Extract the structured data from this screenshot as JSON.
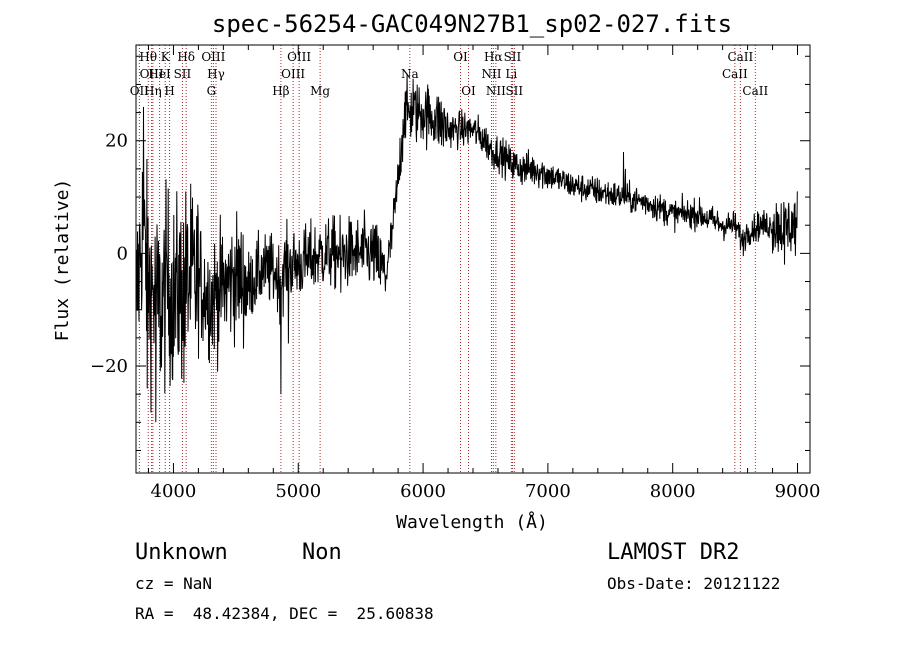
{
  "chart_data": {
    "type": "line",
    "title": "spec-56254-GAC049N27B1_sp02-027.fits",
    "xlabel": "Wavelength (Å)",
    "ylabel": "Flux (relative)",
    "xlim": [
      3700,
      9100
    ],
    "ylim": [
      -39,
      37
    ],
    "x_ticks": [
      4000,
      5000,
      6000,
      7000,
      8000,
      9000
    ],
    "x_tick_labels": [
      "4000",
      "5000",
      "6000",
      "7000",
      "8000",
      "9000"
    ],
    "y_ticks": [
      -20,
      0,
      20
    ],
    "y_tick_labels": [
      "−20",
      "0",
      "20"
    ],
    "grid": false,
    "spectrum_anchors": {
      "x": [
        3700,
        3750,
        3800,
        3850,
        3900,
        3950,
        4000,
        4100,
        4200,
        4300,
        4400,
        4500,
        4600,
        4700,
        4800,
        4860,
        4900,
        5000,
        5100,
        5200,
        5300,
        5400,
        5500,
        5600,
        5700,
        5750,
        5800,
        5850,
        5900,
        6000,
        6100,
        6200,
        6300,
        6400,
        6500,
        6560,
        6600,
        6700,
        6800,
        6900,
        7000,
        7100,
        7200,
        7400,
        7600,
        7800,
        8000,
        8200,
        8400,
        8500,
        8560,
        8600,
        8700,
        8800,
        8900,
        9000
      ],
      "y": [
        -10,
        5,
        -5,
        -8,
        -10,
        -5,
        -8,
        -5,
        -5,
        -8,
        -6,
        -4,
        -6,
        -3,
        -3,
        -5,
        -2,
        -2,
        -1,
        0,
        0,
        0,
        0,
        0,
        -4,
        3,
        13,
        25,
        25,
        25,
        24,
        22,
        22,
        22,
        20,
        18,
        18,
        16,
        15,
        15,
        14,
        13,
        12,
        11,
        10,
        9,
        7,
        7,
        5,
        5,
        2,
        4,
        5,
        5,
        5,
        5
      ]
    },
    "spikes": [
      {
        "x": 3760,
        "y": 26
      },
      {
        "x": 3790,
        "y": -24
      },
      {
        "x": 3860,
        "y": -30
      },
      {
        "x": 4085,
        "y": -23
      },
      {
        "x": 4860,
        "y": -25
      },
      {
        "x": 4920,
        "y": -16
      },
      {
        "x": 5340,
        "y": -7
      },
      {
        "x": 5920,
        "y": 31
      },
      {
        "x": 7605,
        "y": 18
      },
      {
        "x": 7620,
        "y": 15
      },
      {
        "x": 8895,
        "y": -2
      },
      {
        "x": 9000,
        "y": 11
      }
    ],
    "spectral_lines": [
      {
        "name": "OII",
        "x": 3727,
        "row": 2
      },
      {
        "name": "Hθ",
        "x": 3798,
        "row": 0
      },
      {
        "name": "OIII",
        "x": 3825,
        "row": 1
      },
      {
        "name": "Hη",
        "x": 3835,
        "row": 2
      },
      {
        "name": "HeI",
        "x": 3889,
        "row": 1
      },
      {
        "name": "K",
        "x": 3934,
        "row": 0
      },
      {
        "name": "H",
        "x": 3969,
        "row": 2
      },
      {
        "name": "SII",
        "x": 4072,
        "row": 1
      },
      {
        "name": "Hδ",
        "x": 4102,
        "row": 0
      },
      {
        "name": "G",
        "x": 4304,
        "row": 2
      },
      {
        "name": "OIII",
        "x": 4320,
        "row": 0
      },
      {
        "name": "Hγ",
        "x": 4341,
        "row": 1
      },
      {
        "name": "Hβ",
        "x": 4861,
        "row": 2
      },
      {
        "name": "OIII",
        "x": 4959,
        "row": 1
      },
      {
        "name": "OIII",
        "x": 5007,
        "row": 0
      },
      {
        "name": "Mg",
        "x": 5175,
        "row": 2
      },
      {
        "name": "Na",
        "x": 5894,
        "row": 1
      },
      {
        "name": "OI",
        "x": 6300,
        "row": 0
      },
      {
        "name": "OI",
        "x": 6364,
        "row": 2
      },
      {
        "name": "NII",
        "x": 6548,
        "row": 1
      },
      {
        "name": "Hα",
        "x": 6563,
        "row": 0
      },
      {
        "name": "NII",
        "x": 6583,
        "row": 2
      },
      {
        "name": "Li",
        "x": 6707,
        "row": 1
      },
      {
        "name": "SII",
        "x": 6716,
        "row": 0
      },
      {
        "name": "SII",
        "x": 6731,
        "row": 2
      },
      {
        "name": "CaII",
        "x": 8498,
        "row": 1
      },
      {
        "name": "CaII",
        "x": 8542,
        "row": 0
      },
      {
        "name": "CaII",
        "x": 8662,
        "row": 2
      }
    ]
  },
  "info": {
    "object_class": "Unknown",
    "subclass": "Non",
    "cz": "cz = NaN",
    "coords": "RA =  48.42384, DEC =  25.60838",
    "survey": "LAMOST DR2",
    "obs_date": "Obs-Date: 20121122"
  },
  "colors": {
    "spectrum": "#000000",
    "line_marker": "#a52a2a"
  }
}
